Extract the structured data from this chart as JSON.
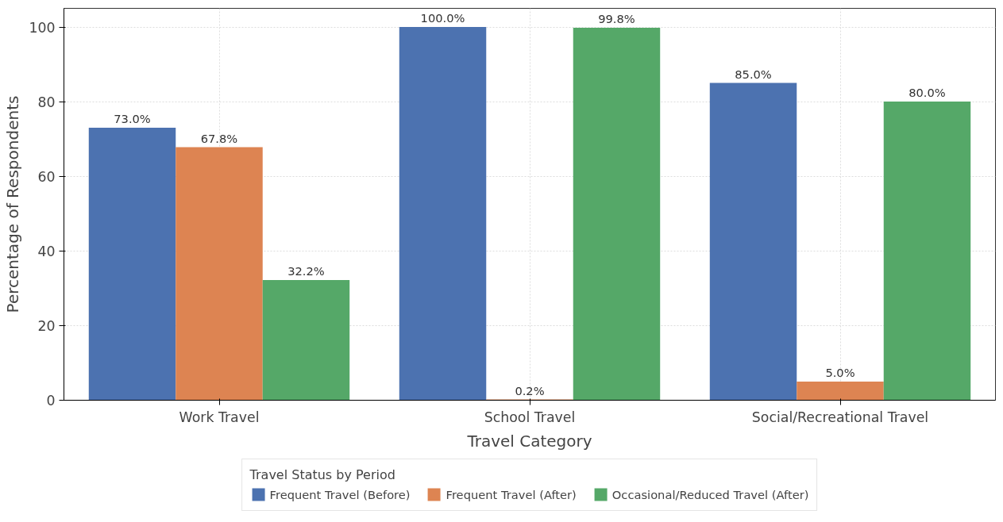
{
  "chart_data": {
    "type": "bar",
    "xlabel": "Travel Category",
    "ylabel": "Percentage of Respondents",
    "legend_title": "Travel Status by Period",
    "categories": [
      "Work Travel",
      "School Travel",
      "Social/Recreational Travel"
    ],
    "series": [
      {
        "name": "Frequent Travel (Before)",
        "color": "#4c72b0",
        "values": [
          73.0,
          100.0,
          85.0
        ],
        "value_labels": [
          "73.0%",
          "100.0%",
          "85.0%"
        ]
      },
      {
        "name": "Frequent Travel (After)",
        "color": "#dd8452",
        "values": [
          67.8,
          0.2,
          5.0
        ],
        "value_labels": [
          "67.8%",
          "0.2%",
          "5.0%"
        ]
      },
      {
        "name": "Occasional/Reduced Travel (After)",
        "color": "#55a868",
        "values": [
          32.2,
          99.8,
          80.0
        ],
        "value_labels": [
          "32.2%",
          "99.8%",
          "80.0%"
        ]
      }
    ],
    "ylim": [
      0,
      105
    ],
    "yticks": [
      0,
      20,
      40,
      60,
      80,
      100
    ],
    "grid": true,
    "legend": "bottom"
  }
}
